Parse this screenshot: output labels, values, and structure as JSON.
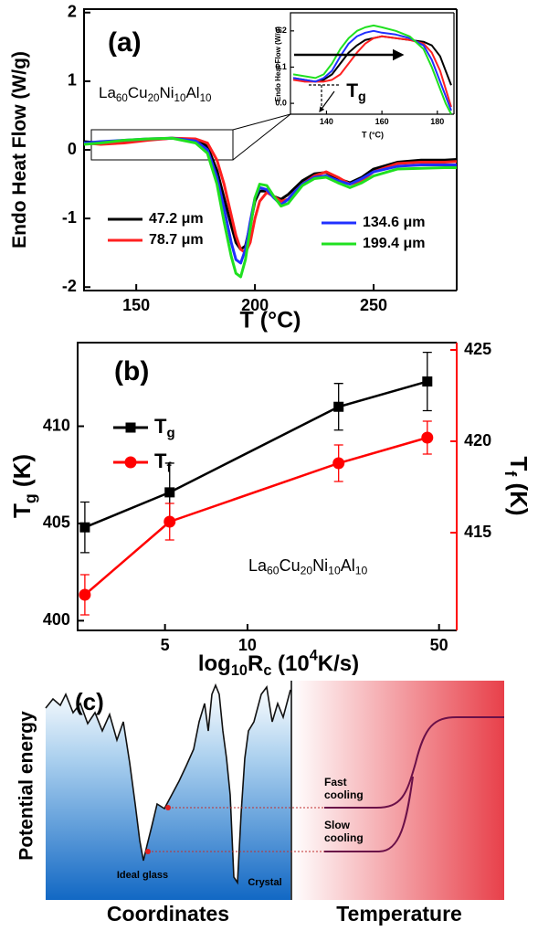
{
  "chart_data": [
    {
      "type": "line",
      "panel_label": "(a)",
      "annotation": "La60Cu20Ni10Al10",
      "x_label": "T (°C)",
      "y_label": "Endo Heat Flow (W/g)",
      "x": [
        128,
        135,
        145,
        155,
        165,
        175,
        180,
        184,
        187,
        190,
        192,
        194,
        196,
        198,
        200,
        202,
        205,
        208,
        211,
        214,
        217,
        220,
        225,
        230,
        235,
        240,
        245,
        250,
        260,
        270,
        280,
        285
      ],
      "series": [
        {
          "name": "47.2 μm",
          "color": "#000000",
          "values": [
            0.12,
            0.1,
            0.12,
            0.15,
            0.17,
            0.15,
            0.05,
            -0.3,
            -0.7,
            -1.1,
            -1.35,
            -1.45,
            -1.4,
            -1.1,
            -0.75,
            -0.6,
            -0.6,
            -0.68,
            -0.72,
            -0.65,
            -0.55,
            -0.45,
            -0.35,
            -0.33,
            -0.42,
            -0.48,
            -0.4,
            -0.28,
            -0.18,
            -0.15,
            -0.15,
            -0.14
          ]
        },
        {
          "name": "78.7 μm",
          "color": "#ff2020",
          "values": [
            0.1,
            0.08,
            0.1,
            0.14,
            0.17,
            0.16,
            0.1,
            -0.15,
            -0.5,
            -0.95,
            -1.25,
            -1.45,
            -1.5,
            -1.35,
            -1.0,
            -0.75,
            -0.62,
            -0.68,
            -0.75,
            -0.72,
            -0.6,
            -0.5,
            -0.38,
            -0.32,
            -0.4,
            -0.5,
            -0.45,
            -0.32,
            -0.2,
            -0.18,
            -0.18,
            -0.17
          ]
        },
        {
          "name": "134.6 μm",
          "color": "#2030ff",
          "values": [
            0.1,
            0.12,
            0.14,
            0.16,
            0.17,
            0.13,
            0.0,
            -0.4,
            -0.85,
            -1.35,
            -1.6,
            -1.65,
            -1.45,
            -1.05,
            -0.7,
            -0.55,
            -0.58,
            -0.7,
            -0.8,
            -0.72,
            -0.6,
            -0.5,
            -0.4,
            -0.38,
            -0.45,
            -0.5,
            -0.42,
            -0.32,
            -0.24,
            -0.22,
            -0.22,
            -0.22
          ]
        },
        {
          "name": "199.4 μm",
          "color": "#20e020",
          "values": [
            0.08,
            0.1,
            0.14,
            0.16,
            0.17,
            0.1,
            -0.05,
            -0.5,
            -1.05,
            -1.55,
            -1.8,
            -1.85,
            -1.6,
            -1.15,
            -0.7,
            -0.5,
            -0.52,
            -0.68,
            -0.82,
            -0.78,
            -0.65,
            -0.52,
            -0.42,
            -0.4,
            -0.48,
            -0.55,
            -0.48,
            -0.38,
            -0.28,
            -0.27,
            -0.26,
            -0.26
          ]
        }
      ],
      "xlim": [
        128,
        285
      ],
      "ylim": [
        -2.05,
        2.05
      ],
      "xticks": [
        150,
        200,
        250
      ],
      "yticks": [
        -2,
        -1,
        0,
        1,
        2
      ]
    },
    {
      "type": "line",
      "annotation": "Tg",
      "x_label": "T (°C)",
      "y_label": "Endo Heat Flow (W/g)",
      "x": [
        128,
        132,
        136,
        139,
        142,
        145,
        148,
        151,
        154,
        157,
        160,
        165,
        170,
        175,
        178,
        181,
        183,
        185
      ],
      "series": [
        {
          "color": "#000000",
          "values": [
            0.07,
            0.065,
            0.06,
            0.065,
            0.08,
            0.11,
            0.14,
            0.16,
            0.175,
            0.18,
            0.185,
            0.18,
            0.175,
            0.17,
            0.16,
            0.13,
            0.09,
            0.05
          ]
        },
        {
          "color": "#ff2020",
          "values": [
            0.065,
            0.06,
            0.06,
            0.06,
            0.065,
            0.08,
            0.11,
            0.14,
            0.165,
            0.18,
            0.185,
            0.18,
            0.175,
            0.165,
            0.14,
            0.09,
            0.04,
            -0.01
          ]
        },
        {
          "color": "#2030ff",
          "values": [
            0.07,
            0.065,
            0.06,
            0.07,
            0.09,
            0.13,
            0.165,
            0.185,
            0.195,
            0.2,
            0.195,
            0.19,
            0.18,
            0.16,
            0.12,
            0.06,
            0.02,
            -0.02
          ]
        },
        {
          "color": "#20e020",
          "values": [
            0.08,
            0.075,
            0.07,
            0.08,
            0.11,
            0.15,
            0.18,
            0.2,
            0.21,
            0.215,
            0.21,
            0.2,
            0.185,
            0.15,
            0.1,
            0.04,
            0.0,
            -0.03
          ]
        }
      ],
      "xlim": [
        127,
        186
      ],
      "ylim": [
        -0.03,
        0.25
      ],
      "xticks": [
        140,
        160,
        180
      ],
      "yticks": [
        {
          "value": 0,
          "label": "0.0"
        },
        0.1,
        0.2
      ]
    },
    {
      "type": "line",
      "panel_label": "(b)",
      "annotation": "La60Cu20Ni10Al10",
      "x_label": "log10Rc (104K/s)",
      "y_label": "Tg (K)",
      "y2_label": "Tf (K)",
      "xscale": "log",
      "x": [
        2.55,
        5.2,
        21.5,
        45.3
      ],
      "series": [
        {
          "name": "Tg",
          "color": "#000000",
          "marker": "square",
          "values": [
            404.8,
            406.6,
            411.0,
            412.3
          ],
          "errors": [
            1.3,
            1.5,
            1.2,
            1.5
          ]
        },
        {
          "name": "Tf",
          "color": "#ff0000",
          "marker": "circle",
          "axis": "y2",
          "values": [
            411.6,
            415.6,
            418.8,
            420.2
          ],
          "errors": [
            1.1,
            1.0,
            1.0,
            0.9
          ]
        }
      ],
      "xlim": [
        2.4,
        58
      ],
      "xticks": [
        5,
        10,
        50
      ],
      "ylim": [
        399.5,
        414.3
      ],
      "yticks": [
        400,
        405,
        410
      ],
      "y2lim": [
        409.65,
        425.4
      ],
      "y2ticks": [
        415,
        420,
        425
      ],
      "y2color": "#ff0000"
    }
  ],
  "diagram": {
    "panel_label": "(c)",
    "y_label": "Potential energy",
    "left_x_label": "Coordinates",
    "right_x_label": "Temperature",
    "fast_cooling": [
      "Fast",
      "cooling"
    ],
    "slow_cooling": [
      "Slow",
      "cooling"
    ],
    "ideal_glass": "Ideal glass",
    "crystal": "Crystal"
  }
}
